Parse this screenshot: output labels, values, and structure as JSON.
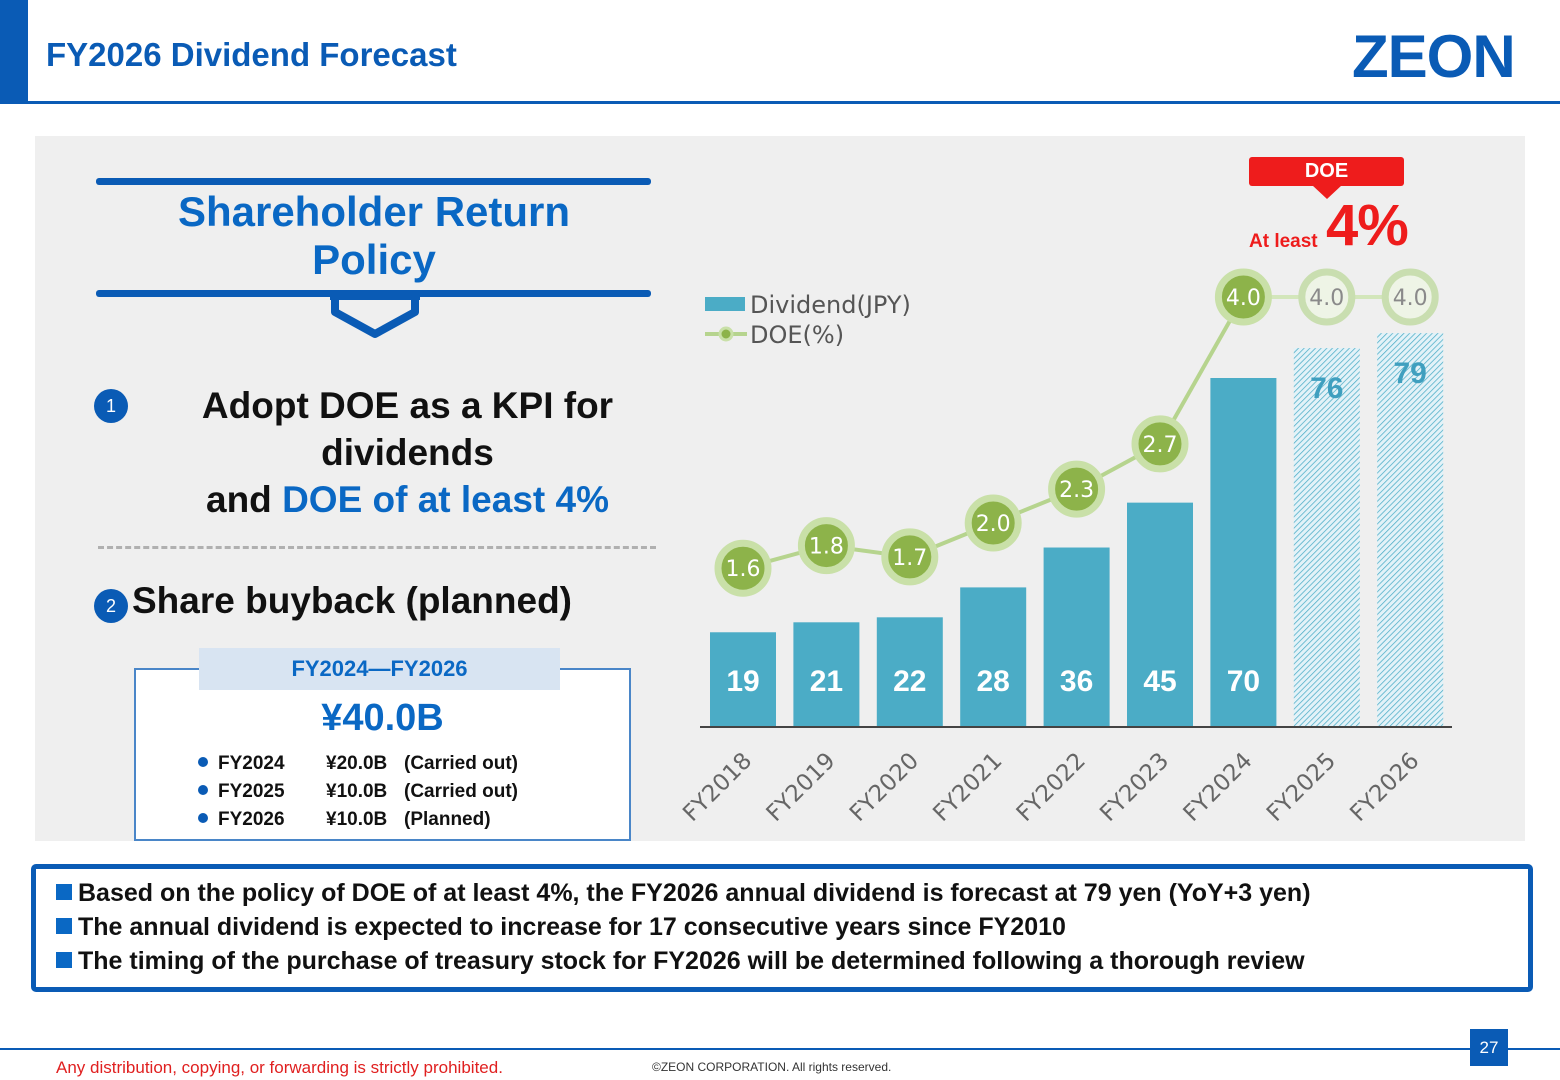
{
  "header": {
    "title": "FY2026 Dividend Forecast",
    "logo": "ZEON"
  },
  "policy": {
    "title_line1": "Shareholder Return",
    "title_line2": "Policy",
    "item1": {
      "number": "1",
      "line1": "Adopt DOE as a KPI for",
      "line2": "dividends",
      "line3_prefix": "and ",
      "line3_highlight": "DOE of  at least 4%"
    },
    "item2": {
      "number": "2",
      "text": "Share buyback (planned)"
    },
    "buyback": {
      "period": "FY2024―FY2026",
      "total": "¥40.0B",
      "rows": [
        {
          "year": "FY2024",
          "amount": "¥20.0B",
          "status": "(Carried  out)"
        },
        {
          "year": "FY2025",
          "amount": "¥10.0B",
          "status": "(Carried  out)"
        },
        {
          "year": "FY2026",
          "amount": "¥10.0B",
          "status": "(Planned)"
        }
      ]
    }
  },
  "doe_callout": {
    "badge": "DOE",
    "prefix": "At least",
    "value": "4%"
  },
  "chart_data": {
    "type": "bar",
    "categories": [
      "FY2018",
      "FY2019",
      "FY2020",
      "FY2021",
      "FY2022",
      "FY2023",
      "FY2024",
      "FY2025",
      "FY2026"
    ],
    "series": [
      {
        "name": "Dividend(JPY)",
        "type": "bar",
        "values": [
          19,
          21,
          22,
          28,
          36,
          45,
          70,
          76,
          79
        ],
        "forecast_from_index": 7,
        "color": "#4bacc6"
      },
      {
        "name": "DOE(%)",
        "type": "line",
        "values": [
          1.6,
          1.8,
          1.7,
          2.0,
          2.3,
          2.7,
          4.0,
          4.0,
          4.0
        ],
        "labels": [
          "1.6",
          "1.8",
          "1.7",
          "2.0",
          "2.3",
          "2.7",
          "4.0",
          "4.0",
          "4.0"
        ],
        "forecast_from_index": 7,
        "color": "#8db34a"
      }
    ],
    "title": "",
    "xlabel": "",
    "ylabel": "",
    "legend": "top-left",
    "grid": false
  },
  "summary": {
    "lines": [
      "Based on the policy of DOE of at least 4%, the FY2026 annual dividend is forecast at 79 yen (YoY+3 yen)",
      "The annual dividend is expected to increase for 17 consecutive years since FY2010",
      "The timing of the purchase of treasury stock for FY2026 will be determined following a thorough review"
    ]
  },
  "footer": {
    "page_number": "27",
    "warning": "Any distribution, copying, or forwarding is strictly prohibited.",
    "copyright": "©ZEON CORPORATION. All rights reserved."
  }
}
